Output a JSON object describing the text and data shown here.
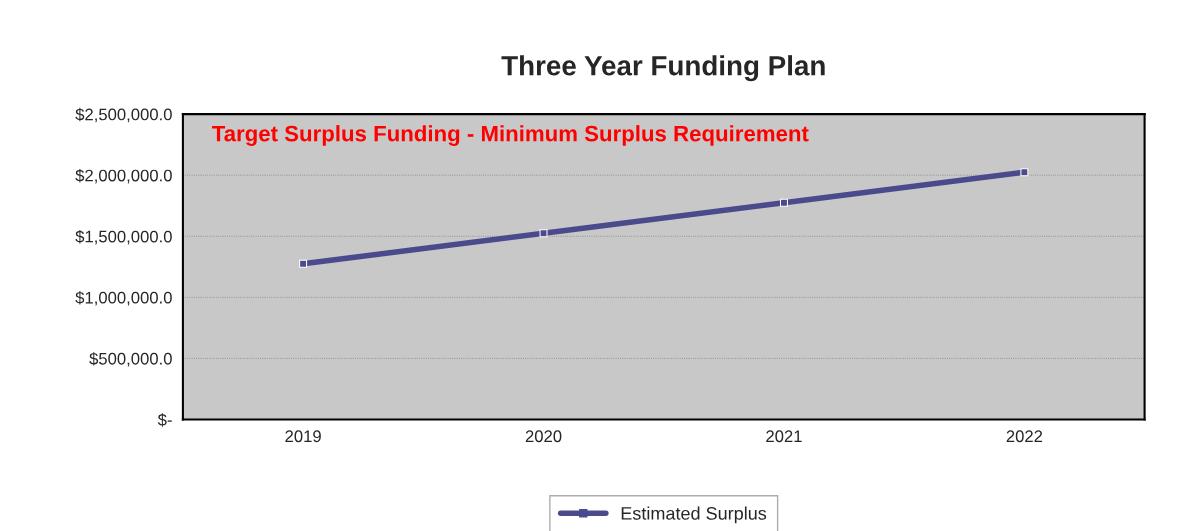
{
  "chart_data": {
    "type": "line",
    "title": "Three Year Funding Plan",
    "categories": [
      "2019",
      "2020",
      "2021",
      "2022"
    ],
    "series": [
      {
        "name": "Estimated Surplus",
        "color": "#4a4a8c",
        "values": [
          1275000,
          1525000,
          1775000,
          2025000
        ]
      }
    ],
    "ylim": [
      0,
      2500000
    ],
    "yticks": [
      {
        "value": 0,
        "label": "$-"
      },
      {
        "value": 500000,
        "label": "$500,000.0"
      },
      {
        "value": 1000000,
        "label": "$1,000,000.0"
      },
      {
        "value": 1500000,
        "label": "$1,500,000.0"
      },
      {
        "value": 2000000,
        "label": "$2,000,000.0"
      },
      {
        "value": 2500000,
        "label": "$2,500,000.0"
      }
    ],
    "annotations": [
      "Target Surplus Funding - Minimum Surplus Requirement"
    ],
    "grid": "y",
    "legend": "bottom",
    "marker": "square",
    "line_style": "solid"
  }
}
